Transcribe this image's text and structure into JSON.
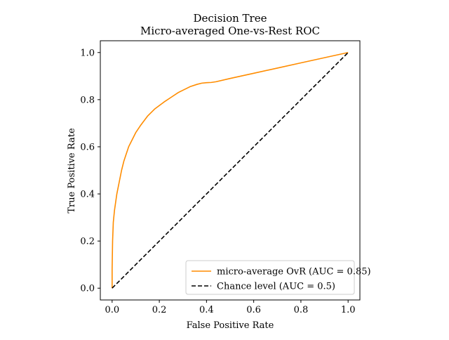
{
  "chart_data": {
    "type": "line",
    "title": "Decision Tree",
    "subtitle": "Micro-averaged One-vs-Rest ROC",
    "xlabel": "False Positive Rate",
    "ylabel": "True Positive Rate",
    "xlim": [
      -0.05,
      1.05
    ],
    "ylim": [
      -0.05,
      1.05
    ],
    "xticks": [
      "0.0",
      "0.2",
      "0.4",
      "0.6",
      "0.8",
      "1.0"
    ],
    "yticks": [
      "0.0",
      "0.2",
      "0.4",
      "0.6",
      "0.8",
      "1.0"
    ],
    "grid": false,
    "legend_position": "bottom-right",
    "series": [
      {
        "name": "micro-average OvR (AUC = 0.85)",
        "color": "#ff8c00",
        "style": "solid",
        "x": [
          0.0,
          0.0,
          0.002,
          0.005,
          0.01,
          0.02,
          0.03,
          0.04,
          0.05,
          0.06,
          0.07,
          0.08,
          0.1,
          0.12,
          0.15,
          0.18,
          0.2,
          0.22,
          0.25,
          0.28,
          0.3,
          0.33,
          0.36,
          0.38,
          0.4,
          0.42,
          0.44,
          0.5,
          0.6,
          0.7,
          0.8,
          0.9,
          1.0
        ],
        "y": [
          0.0,
          0.08,
          0.2,
          0.28,
          0.33,
          0.4,
          0.45,
          0.5,
          0.54,
          0.57,
          0.6,
          0.62,
          0.66,
          0.69,
          0.73,
          0.76,
          0.775,
          0.79,
          0.81,
          0.83,
          0.84,
          0.855,
          0.865,
          0.87,
          0.872,
          0.873,
          0.876,
          0.89,
          0.912,
          0.934,
          0.956,
          0.978,
          1.0
        ]
      },
      {
        "name": "Chance level (AUC = 0.5)",
        "color": "#000000",
        "style": "dashed",
        "x": [
          0.0,
          1.0
        ],
        "y": [
          0.0,
          1.0
        ]
      }
    ]
  }
}
